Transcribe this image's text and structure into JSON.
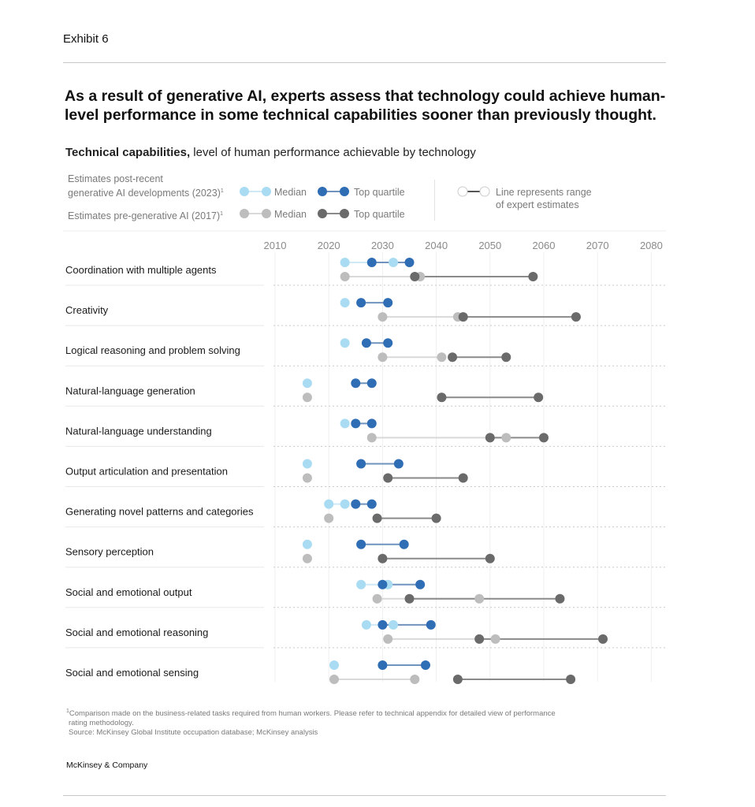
{
  "header": {
    "exhibit": "Exhibit 6",
    "title": "As a result of generative AI, experts assess that technology could achieve human-level performance in some technical capabilities sooner than previously thought.",
    "subtitle_bold": "Technical capabilities,",
    "subtitle_rest": " level of human performance achievable by technology"
  },
  "legend": {
    "post_label_line1": "Estimates post-recent",
    "post_label_line2": "generative AI developments (2023)",
    "pre_label": "Estimates pre-generative AI (2017)",
    "footnote_mark": "1",
    "median": "Median",
    "top_quartile": "Top quartile",
    "range_line1": "Line represents range",
    "range_line2": "of expert estimates"
  },
  "colors": {
    "median_2023": "#a9dcf3",
    "top_2023": "#2f6db5",
    "median_2017": "#bdbdbd",
    "top_2017": "#6a6a6a"
  },
  "chart_data": {
    "type": "dumbbell",
    "title": "Technical capabilities, level of human performance achievable by technology",
    "xlim": [
      2010,
      2080
    ],
    "xticks": [
      "2010",
      "2020",
      "2030",
      "2040",
      "2050",
      "2060",
      "2070",
      "2080"
    ],
    "series_names": [
      "Median 2023",
      "Top quartile 2023",
      "Median 2017",
      "Top quartile 2017"
    ],
    "rows": [
      {
        "label": "Coordination with multiple agents",
        "median_2023": [
          2023,
          2032
        ],
        "top_2023": [
          2028,
          2035
        ],
        "median_2017": [
          2023,
          2037
        ],
        "top_2017": [
          2036,
          2058
        ]
      },
      {
        "label": "Creativity",
        "median_2023": [
          2023,
          2023
        ],
        "top_2023": [
          2026,
          2031
        ],
        "median_2017": [
          2030,
          2044
        ],
        "top_2017": [
          2045,
          2066
        ]
      },
      {
        "label": "Logical reasoning and problem solving",
        "median_2023": [
          2023,
          2023
        ],
        "top_2023": [
          2027,
          2031
        ],
        "median_2017": [
          2030,
          2041
        ],
        "top_2017": [
          2043,
          2053
        ]
      },
      {
        "label": "Natural-language generation",
        "median_2023": [
          2016,
          2016
        ],
        "top_2023": [
          2025,
          2028
        ],
        "median_2017": [
          2016,
          2016
        ],
        "top_2017": [
          2041,
          2059
        ]
      },
      {
        "label": "Natural-language understanding",
        "median_2023": [
          2023,
          2023
        ],
        "top_2023": [
          2025,
          2028
        ],
        "median_2017": [
          2028,
          2053
        ],
        "top_2017": [
          2050,
          2060
        ]
      },
      {
        "label": "Output articulation and presentation",
        "median_2023": [
          2016,
          2016
        ],
        "top_2023": [
          2026,
          2033
        ],
        "median_2017": [
          2016,
          2016
        ],
        "top_2017": [
          2031,
          2045
        ]
      },
      {
        "label": "Generating novel patterns and categories",
        "median_2023": [
          2020,
          2023
        ],
        "top_2023": [
          2025,
          2028
        ],
        "median_2017": [
          2020,
          2020
        ],
        "top_2017": [
          2029,
          2040
        ]
      },
      {
        "label": "Sensory perception",
        "median_2023": [
          2016,
          2016
        ],
        "top_2023": [
          2026,
          2034
        ],
        "median_2017": [
          2016,
          2016
        ],
        "top_2017": [
          2030,
          2050
        ]
      },
      {
        "label": "Social and emotional output",
        "median_2023": [
          2026,
          2031
        ],
        "top_2023": [
          2030,
          2037
        ],
        "median_2017": [
          2029,
          2048
        ],
        "top_2017": [
          2035,
          2063
        ]
      },
      {
        "label": "Social and emotional reasoning",
        "median_2023": [
          2027,
          2032
        ],
        "top_2023": [
          2030,
          2039
        ],
        "median_2017": [
          2031,
          2051
        ],
        "top_2017": [
          2048,
          2071
        ]
      },
      {
        "label": "Social and emotional sensing",
        "median_2023": [
          2021,
          2021
        ],
        "top_2023": [
          2030,
          2038
        ],
        "median_2017": [
          2021,
          2036
        ],
        "top_2017": [
          2044,
          2065
        ]
      }
    ]
  },
  "footer": {
    "footnote_line1": "Comparison made on the business-related tasks required from human workers. Please refer to technical appendix for detailed view of performance",
    "footnote_line2": "rating methodology.",
    "source": "Source: McKinsey Global Institute occupation database; McKinsey analysis",
    "brand": "McKinsey & Company"
  }
}
